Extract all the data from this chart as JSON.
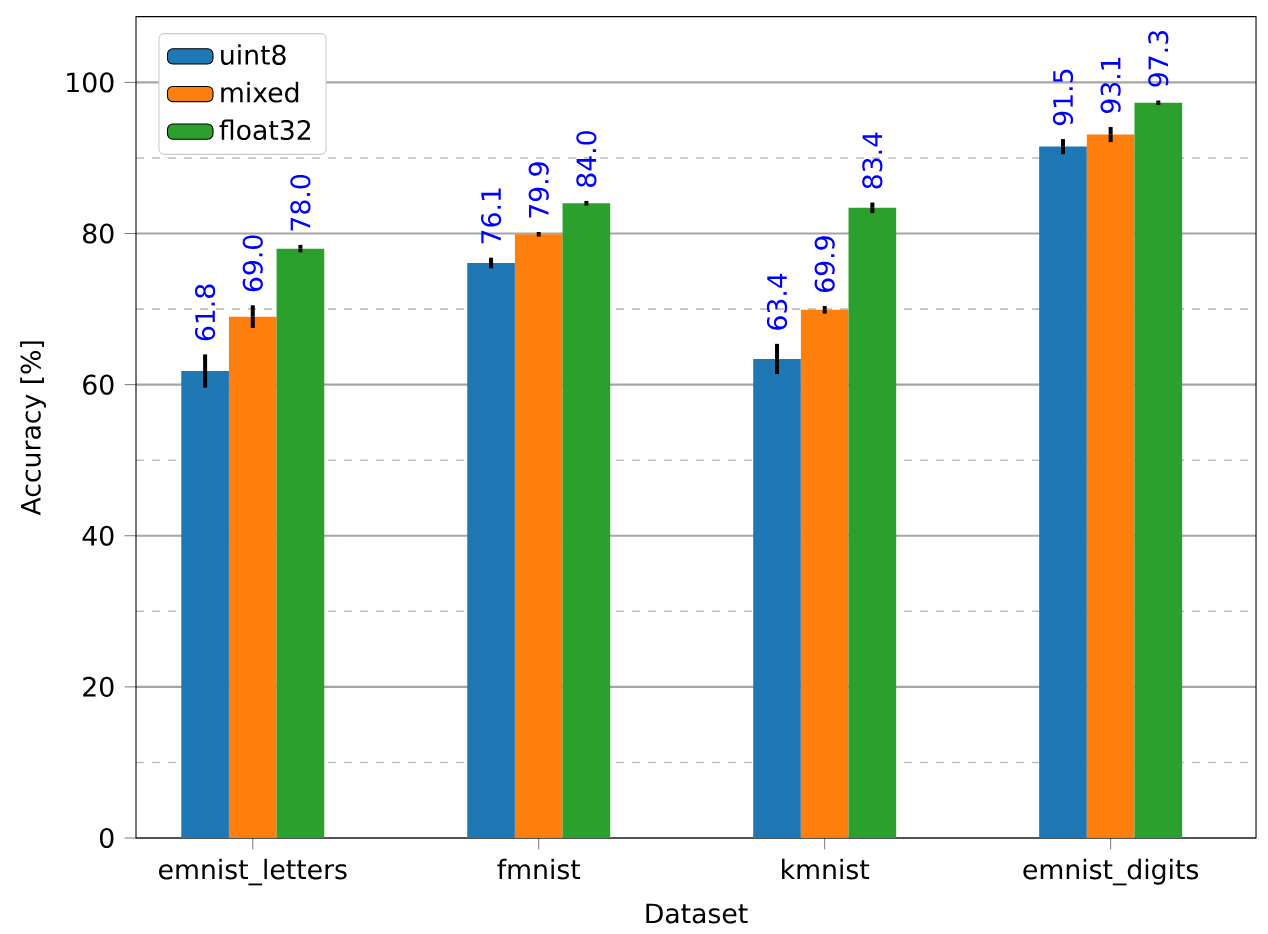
{
  "chart_data": {
    "type": "bar",
    "xlabel": "Dataset",
    "ylabel": "Accuracy [%]",
    "categories": [
      "emnist_letters",
      "fmnist",
      "kmnist",
      "emnist_digits"
    ],
    "series": [
      {
        "name": "uint8",
        "color": "#1f77b4",
        "values": [
          61.8,
          76.1,
          63.4,
          91.5
        ],
        "errors": [
          2.2,
          0.7,
          2.0,
          1.0
        ],
        "value_labels": [
          "61.8",
          "76.1",
          "63.4",
          "91.5"
        ]
      },
      {
        "name": "mixed",
        "color": "#ff7f0e",
        "values": [
          69.0,
          79.9,
          69.9,
          93.1
        ],
        "errors": [
          1.5,
          0.3,
          0.5,
          1.0
        ],
        "value_labels": [
          "69.0",
          "79.9",
          "69.9",
          "93.1"
        ]
      },
      {
        "name": "float32",
        "color": "#2ca02c",
        "values": [
          78.0,
          84.0,
          83.4,
          97.3
        ],
        "errors": [
          0.5,
          0.3,
          0.7,
          0.3
        ],
        "value_labels": [
          "78.0",
          "84.0",
          "83.4",
          "97.3"
        ]
      }
    ],
    "ylim": [
      0,
      108.7
    ],
    "yticks": [
      0,
      20,
      40,
      60,
      80,
      100
    ],
    "grid": "y",
    "legend": "top left"
  }
}
